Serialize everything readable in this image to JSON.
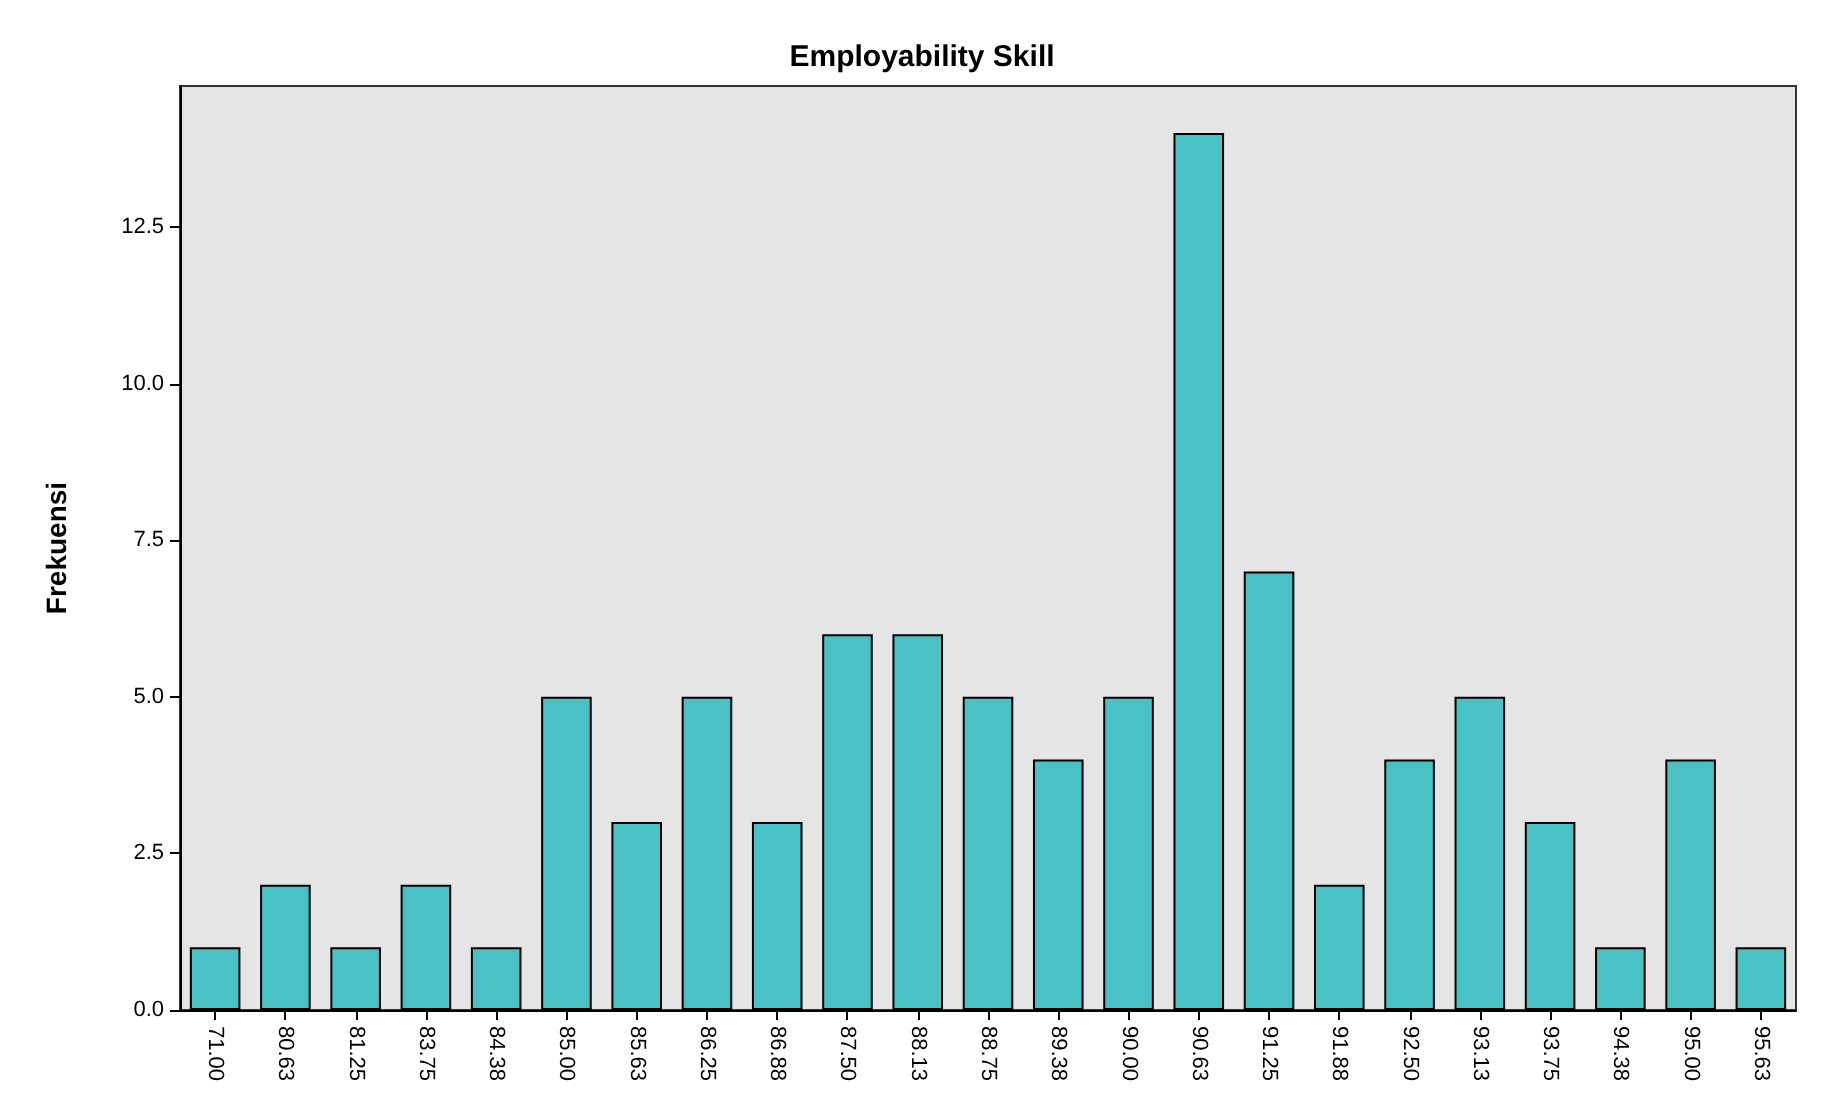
{
  "chart_data": {
    "type": "bar",
    "title": "Employability Skill",
    "ylabel": "Frekuensi",
    "categories": [
      "71.00",
      "80.63",
      "81.25",
      "83.75",
      "84.38",
      "85.00",
      "85.63",
      "86.25",
      "86.88",
      "87.50",
      "88.13",
      "88.75",
      "89.38",
      "90.00",
      "90.63",
      "91.25",
      "91.88",
      "92.50",
      "93.13",
      "93.75",
      "94.38",
      "95.00",
      "95.63"
    ],
    "values": [
      1,
      2,
      1,
      2,
      1,
      5,
      3,
      5,
      3,
      6,
      6,
      5,
      4,
      5,
      14,
      7,
      2,
      4,
      5,
      3,
      1,
      4,
      1
    ],
    "color": "#48c2c5",
    "ylim": [
      0,
      14.75
    ],
    "yticks": [
      {
        "value": 0,
        "label": "0.0"
      },
      {
        "value": 2.5,
        "label": "2.5"
      },
      {
        "value": 5,
        "label": "5.0"
      },
      {
        "value": 7.5,
        "label": "7.5"
      },
      {
        "value": 10,
        "label": "10.0"
      },
      {
        "value": 12.5,
        "label": "12.5"
      }
    ],
    "grid": false
  }
}
